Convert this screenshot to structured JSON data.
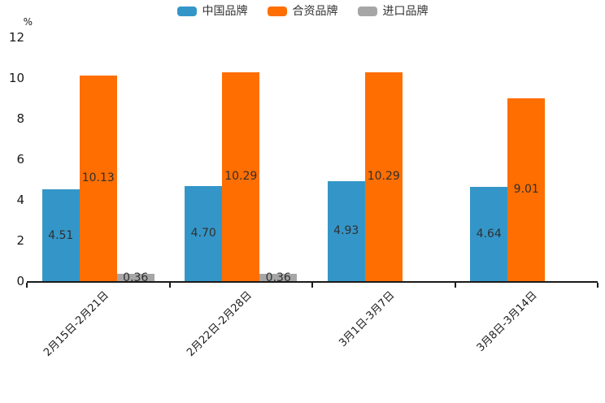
{
  "chart_data": {
    "type": "bar",
    "title": "",
    "unit_label": "%",
    "xlabel": "",
    "ylabel": "",
    "categories": [
      "2月15日-2月21日",
      "2月22日-2月28日",
      "3月1日-3月7日",
      "3月8日-3月14日"
    ],
    "series": [
      {
        "name": "中国品牌",
        "color": "#3496c8",
        "values": [
          4.51,
          4.7,
          4.93,
          4.64
        ],
        "labels": [
          "4.51",
          "4.70",
          "4.93",
          "4.64"
        ]
      },
      {
        "name": "合资品牌",
        "color": "#ff6e00",
        "values": [
          10.13,
          10.29,
          10.29,
          9.01
        ],
        "labels": [
          "10.13",
          "10.29",
          "10.29",
          "9.01"
        ]
      },
      {
        "name": "进口品牌",
        "color": "#a6a6a6",
        "values": [
          0.36,
          0.36,
          null,
          null
        ],
        "labels": [
          "0.36",
          "0.36",
          null,
          null
        ]
      }
    ],
    "y_ticks": [
      0,
      2,
      4,
      6,
      8,
      10,
      12
    ],
    "ylim": [
      0,
      12
    ],
    "grid": false,
    "legend_position": "top",
    "value_labels": true,
    "value_label_color": "#303030",
    "axis_color": "#1a1a1a",
    "tick_label_color": "#1a1a1a"
  }
}
